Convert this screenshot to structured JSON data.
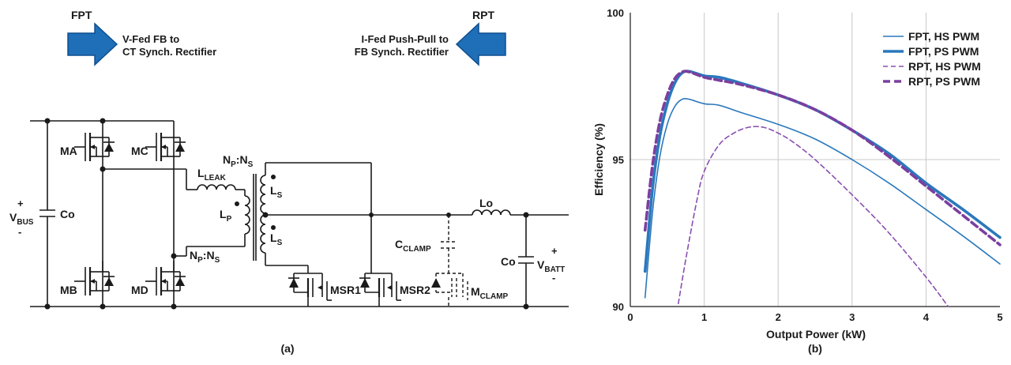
{
  "circuit": {
    "fpt": "FPT",
    "fpt_desc_1": "V-Fed FB to",
    "fpt_desc_2": "CT Synch. Rectifier",
    "rpt": "RPT",
    "rpt_desc_1": "I-Fed Push-Pull to",
    "rpt_desc_2": "FB Synch. Rectifier",
    "vbus_main": "V",
    "vbus_sub": "BUS",
    "co_left": "Co",
    "ma": "MA",
    "mb": "MB",
    "mc": "MC",
    "md": "MD",
    "lleak_main": "L",
    "lleak_sub": "LEAK",
    "lp_main": "L",
    "lp_sub": "P",
    "ls_main": "L",
    "ls_sub": "S",
    "np_ns_np": "N",
    "np_ns_p": "P",
    "np_ns_colon": ":N",
    "np_ns_s": "S",
    "lo": "Lo",
    "cclamp_main": "C",
    "cclamp_sub": "CLAMP",
    "co_right": "Co",
    "vbatt_main": "V",
    "vbatt_sub": "BATT",
    "msr1": "MSR1",
    "msr2": "MSR2",
    "mclamp_main": "M",
    "mclamp_sub": "CLAMP",
    "plus": "+",
    "minus": "-",
    "caption": "(a)"
  },
  "chart_data": {
    "type": "line",
    "xlabel": "Output Power (kW)",
    "ylabel": "Efficiency (%)",
    "xlim": [
      0,
      5
    ],
    "ylim": [
      90,
      100
    ],
    "xticks": [
      "0",
      "1",
      "2",
      "3",
      "4",
      "5"
    ],
    "yticks": [
      "90",
      "95",
      "100"
    ],
    "grid": true,
    "legend_position": "top-right",
    "caption": "(b)",
    "series": [
      {
        "name": "FPT, HS PWM",
        "color": "#2a78bc",
        "style": "solid-thin",
        "x": [
          0.2,
          0.3,
          0.4,
          0.5,
          0.6,
          0.7,
          0.8,
          1.0,
          1.2,
          1.5,
          2.0,
          2.5,
          3.0,
          3.5,
          4.0,
          4.5,
          5.0
        ],
        "y": [
          90.3,
          93.2,
          95.1,
          96.2,
          96.8,
          97.05,
          97.05,
          96.9,
          96.85,
          96.6,
          96.2,
          95.7,
          95.0,
          94.2,
          93.3,
          92.4,
          91.45
        ]
      },
      {
        "name": "FPT, PS PWM",
        "color": "#2a78bc",
        "style": "solid-thick",
        "x": [
          0.2,
          0.3,
          0.4,
          0.5,
          0.6,
          0.7,
          0.8,
          1.0,
          1.2,
          1.5,
          2.0,
          2.5,
          3.0,
          3.5,
          4.0,
          4.5,
          5.0
        ],
        "y": [
          91.2,
          94.0,
          95.8,
          96.9,
          97.6,
          97.95,
          98.0,
          97.85,
          97.8,
          97.6,
          97.2,
          96.7,
          96.0,
          95.2,
          94.2,
          93.3,
          92.35
        ]
      },
      {
        "name": "RPT, HS PWM",
        "color": "#8a4fb0",
        "style": "dashed-thin",
        "x": [
          0.65,
          0.75,
          0.9,
          1.0,
          1.2,
          1.4,
          1.6,
          1.8,
          2.0,
          2.2,
          2.5,
          3.0,
          3.5,
          4.0,
          4.3
        ],
        "y": [
          90.1,
          91.6,
          93.6,
          94.6,
          95.5,
          95.9,
          96.1,
          96.1,
          95.9,
          95.6,
          95.0,
          93.8,
          92.5,
          91.0,
          90.0
        ]
      },
      {
        "name": "RPT, PS PWM",
        "color": "#7b3f9e",
        "style": "dashed-thick",
        "x": [
          0.2,
          0.3,
          0.4,
          0.5,
          0.6,
          0.7,
          0.8,
          1.0,
          1.2,
          1.5,
          2.0,
          2.5,
          3.0,
          3.5,
          4.0,
          4.5,
          5.0
        ],
        "y": [
          92.6,
          94.8,
          96.3,
          97.2,
          97.75,
          97.98,
          97.98,
          97.8,
          97.7,
          97.55,
          97.2,
          96.7,
          96.0,
          95.1,
          94.1,
          93.1,
          92.1
        ]
      }
    ]
  }
}
